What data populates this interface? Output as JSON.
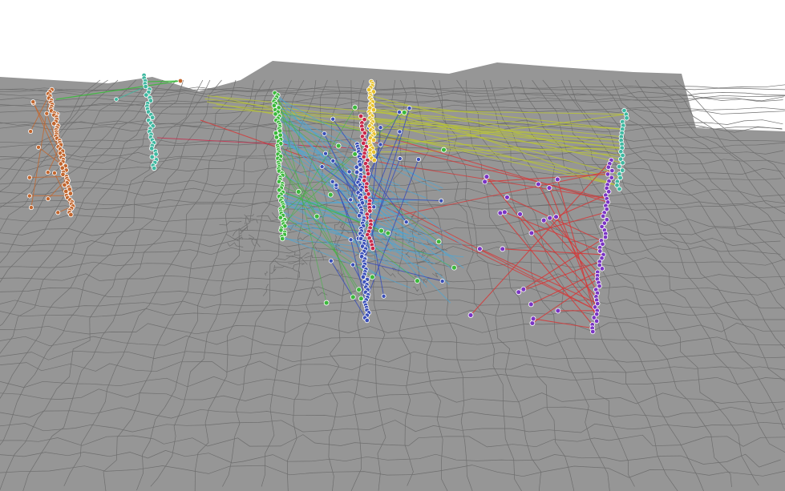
{
  "view": {
    "type": "3d-perspective-map-visualization",
    "background": "#ffffff",
    "land_color": "#969696",
    "boundary_color": "#6e6e6e",
    "interactive": false
  },
  "groups": [
    {
      "name": "brown-cluster",
      "color": "#c2662e"
    },
    {
      "name": "teal-cluster",
      "color": "#3fb8a0"
    },
    {
      "name": "green-cluster",
      "color": "#3cb93c"
    },
    {
      "name": "yellow-cluster",
      "color": "#e6c02a"
    },
    {
      "name": "crimson-cluster",
      "color": "#c8294a"
    },
    {
      "name": "blue-cluster",
      "color": "#3a4fb8"
    },
    {
      "name": "lightblue-links",
      "color": "#4aa6d6"
    },
    {
      "name": "purple-cluster",
      "color": "#7b35c4"
    },
    {
      "name": "olive-links",
      "color": "#b7c23b"
    },
    {
      "name": "red-links",
      "color": "#d43a3a"
    }
  ]
}
